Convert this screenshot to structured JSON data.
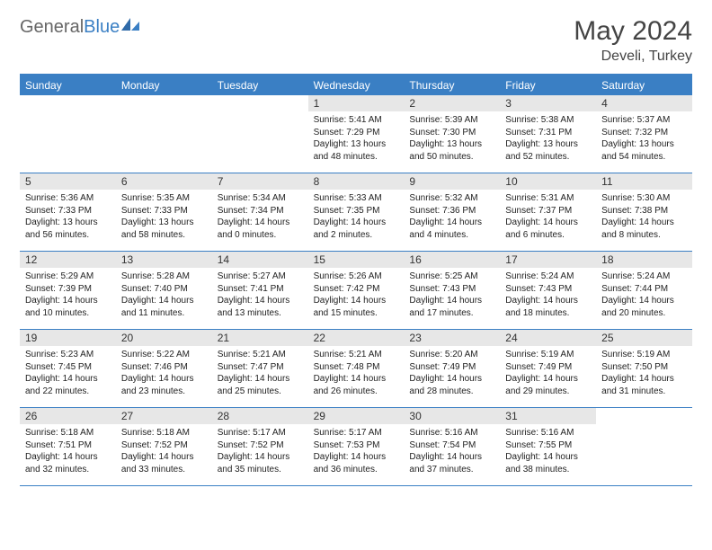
{
  "brand": {
    "part1": "General",
    "part2": "Blue"
  },
  "title": "May 2024",
  "location": "Develi, Turkey",
  "colors": {
    "accent": "#3a7fc4",
    "header_gray": "#e7e7e7",
    "text": "#222222"
  },
  "layout": {
    "columns": 7,
    "rows": 5,
    "font_family": "Arial",
    "day_num_fontsize": 12,
    "info_fontsize": 10
  },
  "weekdays": [
    "Sunday",
    "Monday",
    "Tuesday",
    "Wednesday",
    "Thursday",
    "Friday",
    "Saturday"
  ],
  "weeks": [
    [
      {
        "num": "",
        "sunrise": "",
        "sunset": "",
        "daylight": ""
      },
      {
        "num": "",
        "sunrise": "",
        "sunset": "",
        "daylight": ""
      },
      {
        "num": "",
        "sunrise": "",
        "sunset": "",
        "daylight": ""
      },
      {
        "num": "1",
        "sunrise": "Sunrise: 5:41 AM",
        "sunset": "Sunset: 7:29 PM",
        "daylight": "Daylight: 13 hours and 48 minutes."
      },
      {
        "num": "2",
        "sunrise": "Sunrise: 5:39 AM",
        "sunset": "Sunset: 7:30 PM",
        "daylight": "Daylight: 13 hours and 50 minutes."
      },
      {
        "num": "3",
        "sunrise": "Sunrise: 5:38 AM",
        "sunset": "Sunset: 7:31 PM",
        "daylight": "Daylight: 13 hours and 52 minutes."
      },
      {
        "num": "4",
        "sunrise": "Sunrise: 5:37 AM",
        "sunset": "Sunset: 7:32 PM",
        "daylight": "Daylight: 13 hours and 54 minutes."
      }
    ],
    [
      {
        "num": "5",
        "sunrise": "Sunrise: 5:36 AM",
        "sunset": "Sunset: 7:33 PM",
        "daylight": "Daylight: 13 hours and 56 minutes."
      },
      {
        "num": "6",
        "sunrise": "Sunrise: 5:35 AM",
        "sunset": "Sunset: 7:33 PM",
        "daylight": "Daylight: 13 hours and 58 minutes."
      },
      {
        "num": "7",
        "sunrise": "Sunrise: 5:34 AM",
        "sunset": "Sunset: 7:34 PM",
        "daylight": "Daylight: 14 hours and 0 minutes."
      },
      {
        "num": "8",
        "sunrise": "Sunrise: 5:33 AM",
        "sunset": "Sunset: 7:35 PM",
        "daylight": "Daylight: 14 hours and 2 minutes."
      },
      {
        "num": "9",
        "sunrise": "Sunrise: 5:32 AM",
        "sunset": "Sunset: 7:36 PM",
        "daylight": "Daylight: 14 hours and 4 minutes."
      },
      {
        "num": "10",
        "sunrise": "Sunrise: 5:31 AM",
        "sunset": "Sunset: 7:37 PM",
        "daylight": "Daylight: 14 hours and 6 minutes."
      },
      {
        "num": "11",
        "sunrise": "Sunrise: 5:30 AM",
        "sunset": "Sunset: 7:38 PM",
        "daylight": "Daylight: 14 hours and 8 minutes."
      }
    ],
    [
      {
        "num": "12",
        "sunrise": "Sunrise: 5:29 AM",
        "sunset": "Sunset: 7:39 PM",
        "daylight": "Daylight: 14 hours and 10 minutes."
      },
      {
        "num": "13",
        "sunrise": "Sunrise: 5:28 AM",
        "sunset": "Sunset: 7:40 PM",
        "daylight": "Daylight: 14 hours and 11 minutes."
      },
      {
        "num": "14",
        "sunrise": "Sunrise: 5:27 AM",
        "sunset": "Sunset: 7:41 PM",
        "daylight": "Daylight: 14 hours and 13 minutes."
      },
      {
        "num": "15",
        "sunrise": "Sunrise: 5:26 AM",
        "sunset": "Sunset: 7:42 PM",
        "daylight": "Daylight: 14 hours and 15 minutes."
      },
      {
        "num": "16",
        "sunrise": "Sunrise: 5:25 AM",
        "sunset": "Sunset: 7:43 PM",
        "daylight": "Daylight: 14 hours and 17 minutes."
      },
      {
        "num": "17",
        "sunrise": "Sunrise: 5:24 AM",
        "sunset": "Sunset: 7:43 PM",
        "daylight": "Daylight: 14 hours and 18 minutes."
      },
      {
        "num": "18",
        "sunrise": "Sunrise: 5:24 AM",
        "sunset": "Sunset: 7:44 PM",
        "daylight": "Daylight: 14 hours and 20 minutes."
      }
    ],
    [
      {
        "num": "19",
        "sunrise": "Sunrise: 5:23 AM",
        "sunset": "Sunset: 7:45 PM",
        "daylight": "Daylight: 14 hours and 22 minutes."
      },
      {
        "num": "20",
        "sunrise": "Sunrise: 5:22 AM",
        "sunset": "Sunset: 7:46 PM",
        "daylight": "Daylight: 14 hours and 23 minutes."
      },
      {
        "num": "21",
        "sunrise": "Sunrise: 5:21 AM",
        "sunset": "Sunset: 7:47 PM",
        "daylight": "Daylight: 14 hours and 25 minutes."
      },
      {
        "num": "22",
        "sunrise": "Sunrise: 5:21 AM",
        "sunset": "Sunset: 7:48 PM",
        "daylight": "Daylight: 14 hours and 26 minutes."
      },
      {
        "num": "23",
        "sunrise": "Sunrise: 5:20 AM",
        "sunset": "Sunset: 7:49 PM",
        "daylight": "Daylight: 14 hours and 28 minutes."
      },
      {
        "num": "24",
        "sunrise": "Sunrise: 5:19 AM",
        "sunset": "Sunset: 7:49 PM",
        "daylight": "Daylight: 14 hours and 29 minutes."
      },
      {
        "num": "25",
        "sunrise": "Sunrise: 5:19 AM",
        "sunset": "Sunset: 7:50 PM",
        "daylight": "Daylight: 14 hours and 31 minutes."
      }
    ],
    [
      {
        "num": "26",
        "sunrise": "Sunrise: 5:18 AM",
        "sunset": "Sunset: 7:51 PM",
        "daylight": "Daylight: 14 hours and 32 minutes."
      },
      {
        "num": "27",
        "sunrise": "Sunrise: 5:18 AM",
        "sunset": "Sunset: 7:52 PM",
        "daylight": "Daylight: 14 hours and 33 minutes."
      },
      {
        "num": "28",
        "sunrise": "Sunrise: 5:17 AM",
        "sunset": "Sunset: 7:52 PM",
        "daylight": "Daylight: 14 hours and 35 minutes."
      },
      {
        "num": "29",
        "sunrise": "Sunrise: 5:17 AM",
        "sunset": "Sunset: 7:53 PM",
        "daylight": "Daylight: 14 hours and 36 minutes."
      },
      {
        "num": "30",
        "sunrise": "Sunrise: 5:16 AM",
        "sunset": "Sunset: 7:54 PM",
        "daylight": "Daylight: 14 hours and 37 minutes."
      },
      {
        "num": "31",
        "sunrise": "Sunrise: 5:16 AM",
        "sunset": "Sunset: 7:55 PM",
        "daylight": "Daylight: 14 hours and 38 minutes."
      },
      {
        "num": "",
        "sunrise": "",
        "sunset": "",
        "daylight": ""
      }
    ]
  ]
}
